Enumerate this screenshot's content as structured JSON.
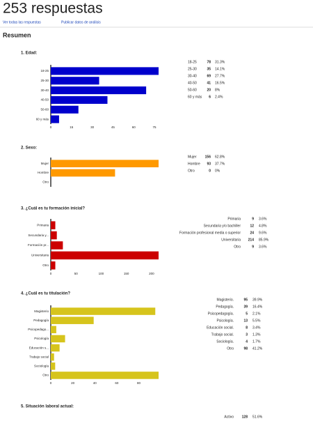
{
  "header": {
    "title": "253 respuestas",
    "links": [
      "Ver todas las respuestas",
      "Publicar datos de análisis"
    ]
  },
  "summary_title": "Resumen",
  "chart_data": [
    {
      "type": "bar",
      "title": "1. Edad:",
      "color": "#0000cc",
      "categories": [
        "18-25",
        "25-30",
        "30-40",
        "40-50",
        "50-60",
        "60 y más"
      ],
      "values": [
        78,
        35,
        69,
        41,
        20,
        6
      ],
      "percent": [
        31.3,
        14.1,
        27.7,
        16.5,
        8,
        2.4
      ],
      "percent_labels": [
        "31.3%",
        "14.1%",
        "27.7%",
        "16.5%",
        "8%",
        "2.4%"
      ],
      "xlim": [
        0,
        78
      ],
      "xticks": [
        0,
        15,
        30,
        45,
        60,
        75
      ]
    },
    {
      "type": "bar",
      "title": "2. Sexo:",
      "color": "#ff9900",
      "categories": [
        "Mujer",
        "Hombre",
        "Otro"
      ],
      "values": [
        156,
        93,
        0
      ],
      "percent": [
        62.8,
        37.7,
        0
      ],
      "percent_labels": [
        "62.8%",
        "37.7%",
        "0%"
      ],
      "xlim": [
        0,
        156
      ]
    },
    {
      "type": "bar",
      "title": "3. ¿Cuál es tu formación inicial?",
      "color": "#cc0000",
      "categories": [
        "Primaria",
        "Secundaria y/o bachiller",
        "Formación profesional media o superior",
        "Universitaria",
        "Otro"
      ],
      "tick_labels": [
        "Primaria",
        "Secundaria y...",
        "Formación pr...",
        "Universitaria",
        "Otro"
      ],
      "values": [
        9,
        12,
        24,
        214,
        9
      ],
      "percent": [
        3.6,
        4.8,
        9.6,
        85.9,
        3.6
      ],
      "percent_labels": [
        "3.6%",
        "4.8%",
        "9.6%",
        "85.9%",
        "3.6%"
      ],
      "xlim": [
        0,
        214
      ],
      "xticks": [
        0,
        50,
        100,
        150,
        200
      ]
    },
    {
      "type": "bar",
      "title": "4. ¿Cuál es tu titulación?",
      "color": "#d6c41c",
      "categories": [
        "Magisterio.",
        "Pedagogía.",
        "Psicopedagogía.",
        "Psicología.",
        "Educación social.",
        "Trabajo social.",
        "Sociología.",
        "Otro"
      ],
      "tick_labels": [
        "Magisterio",
        "Pedagogía",
        "Psicopedago...",
        "Psicología",
        "Educación s...",
        "Trabajo social",
        "Sociología",
        "Otro"
      ],
      "values": [
        95,
        39,
        5,
        13,
        8,
        3,
        4,
        98
      ],
      "percent": [
        39.9,
        16.4,
        2.1,
        5.5,
        3.4,
        1.3,
        1.7,
        41.2
      ],
      "percent_labels": [
        "39.9%",
        "16.4%",
        "2.1%",
        "5.5%",
        "3.4%",
        "1.3%",
        "1.7%",
        "41.2%"
      ],
      "xlim": [
        0,
        98
      ],
      "xticks": [
        0,
        20,
        40,
        60,
        80
      ]
    },
    {
      "type": "table",
      "title": "5. Situación laboral actual:",
      "categories": [
        "Activo"
      ],
      "values": [
        128
      ],
      "percent": [
        51.6
      ],
      "percent_labels": [
        "51.6%"
      ]
    }
  ]
}
